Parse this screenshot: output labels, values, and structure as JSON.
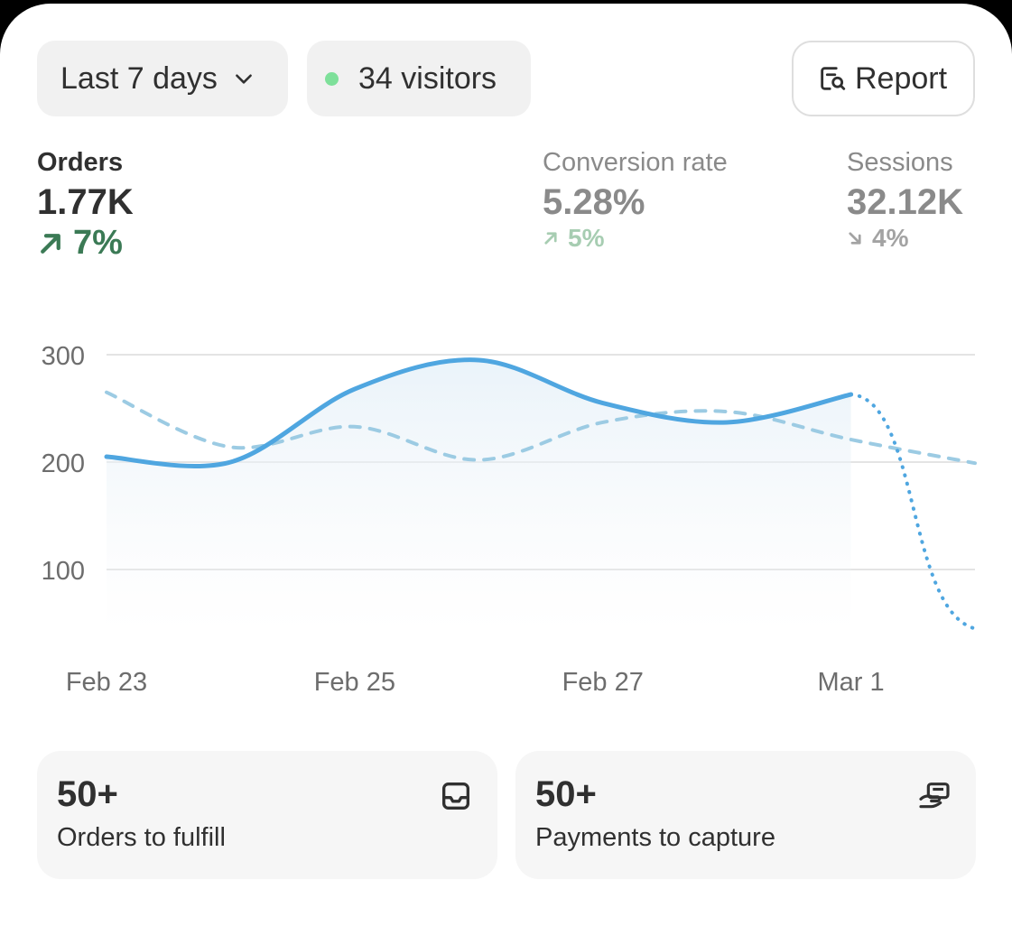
{
  "header": {
    "date_range_label": "Last 7 days",
    "visitors_label": "34 visitors",
    "report_label": "Report"
  },
  "metrics": [
    {
      "label": "Orders",
      "value": "1.77K",
      "delta": "7%",
      "direction": "up",
      "active": true
    },
    {
      "label": "Conversion rate",
      "value": "5.28%",
      "delta": "5%",
      "direction": "up",
      "active": false
    },
    {
      "label": "Sessions",
      "value": "32.12K",
      "delta": "4%",
      "direction": "down",
      "active": false
    }
  ],
  "chart_data": {
    "type": "line",
    "x_tick_labels": [
      "Feb 23",
      "Feb 25",
      "Feb 27",
      "Mar 1"
    ],
    "y_ticks": [
      100,
      200,
      300
    ],
    "y_tick_labels": [
      "100",
      "200",
      "300"
    ],
    "ylim": [
      50,
      310
    ],
    "grid": true,
    "x_days": [
      "Feb 23",
      "Feb 24",
      "Feb 25",
      "Feb 26",
      "Feb 27",
      "Feb 28",
      "Mar 1",
      "Mar 2"
    ],
    "series": [
      {
        "style": "solid",
        "values": [
          205,
          200,
          268,
          295,
          255,
          237,
          263,
          null
        ]
      },
      {
        "style": "projection-dotted",
        "values": [
          null,
          null,
          null,
          null,
          null,
          null,
          263,
          45
        ]
      },
      {
        "style": "dashed-comparison",
        "values": [
          265,
          214,
          233,
          202,
          237,
          247,
          221,
          199
        ]
      }
    ],
    "colors": {
      "current": "#4fa6e0",
      "comparison": "#9ccbe3",
      "grid": "#e4e4e4",
      "tick": "#6d6d6d"
    }
  },
  "tasks": [
    {
      "count": "50+",
      "label": "Orders to fulfill",
      "icon": "inbox-icon"
    },
    {
      "count": "50+",
      "label": "Payments to capture",
      "icon": "hand-card-icon"
    }
  ]
}
